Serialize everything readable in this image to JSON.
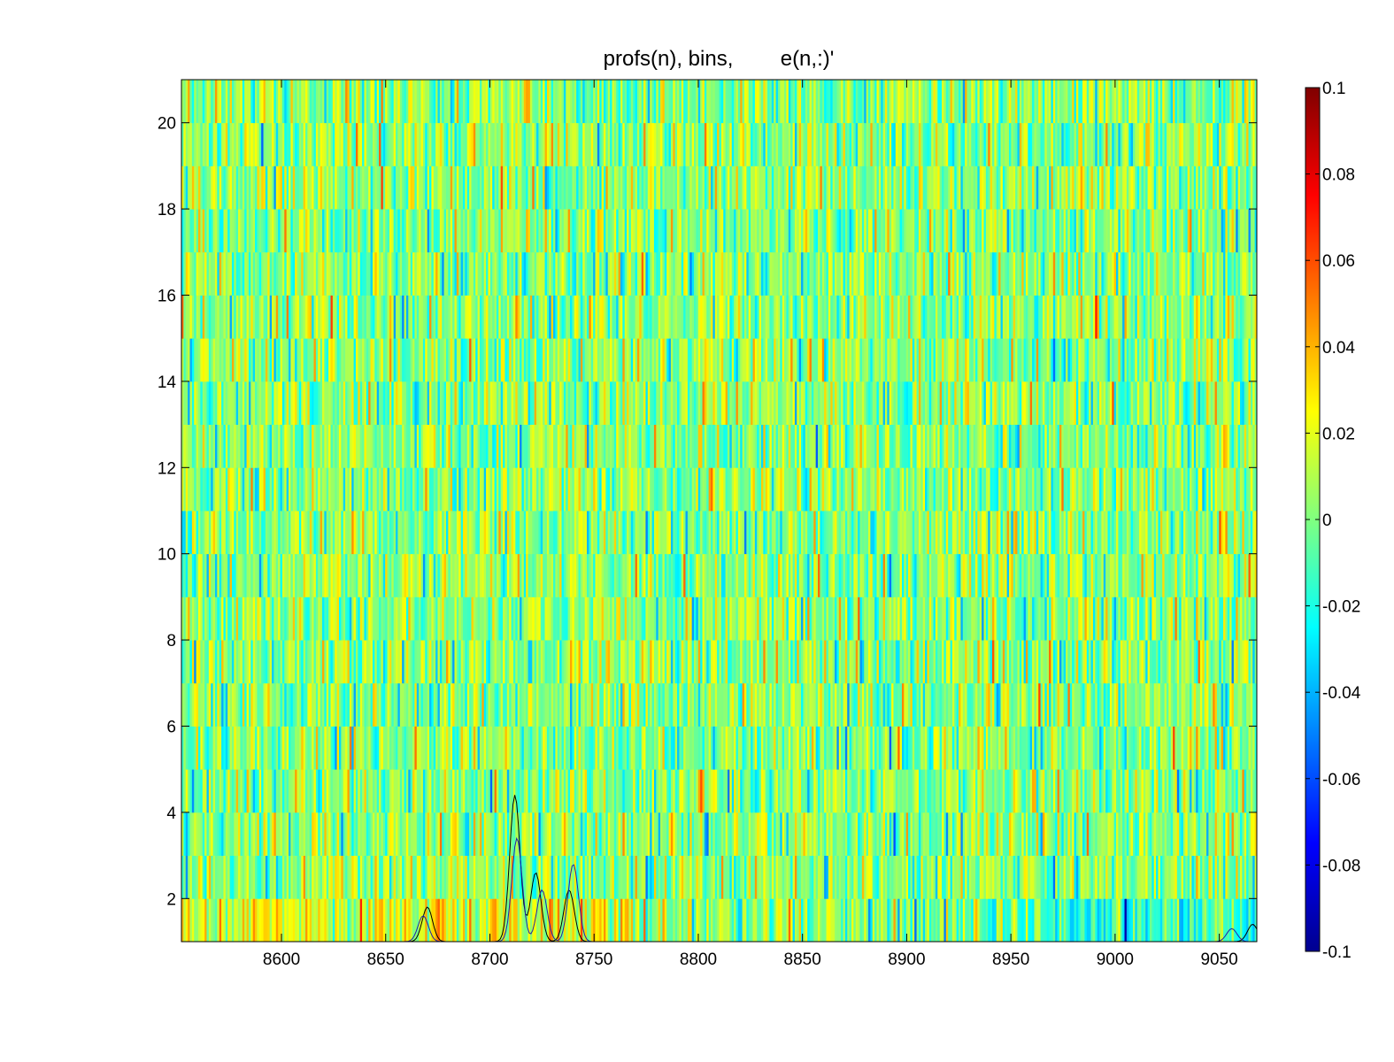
{
  "chart_data": {
    "type": "heatmap",
    "title": "profs(n), bins,        e(n,:)'",
    "xlabel": "",
    "ylabel": "",
    "xlim": [
      8552,
      9068
    ],
    "ylim": [
      1,
      21
    ],
    "x_ticks": [
      8600,
      8650,
      8700,
      8750,
      8800,
      8850,
      8900,
      8950,
      9000,
      9050
    ],
    "x_tick_labels": [
      "8600",
      "8650",
      "8700",
      "8750",
      "8800",
      "8850",
      "8900",
      "8950",
      "9000",
      "9050"
    ],
    "y_ticks": [
      2,
      4,
      6,
      8,
      10,
      12,
      14,
      16,
      18,
      20
    ],
    "y_tick_labels": [
      "2",
      "4",
      "6",
      "8",
      "10",
      "12",
      "14",
      "16",
      "18",
      "20"
    ],
    "rows": 20,
    "bins_per_row": 512,
    "colormap": "jet",
    "colorbar": {
      "range": [
        -0.1,
        0.1
      ],
      "ticks": [
        -0.1,
        -0.08,
        -0.06,
        -0.04,
        -0.02,
        0,
        0.02,
        0.04,
        0.06,
        0.08,
        0.1
      ],
      "tick_labels": [
        "-0.1",
        "-0.08",
        "-0.06",
        "-0.04",
        "-0.02",
        "0",
        "0.02",
        "0.04",
        "0.06",
        "0.08",
        "0.1"
      ]
    },
    "overlay_profiles": [
      {
        "color": "#000000",
        "peaks": [
          [
            8670,
            0.8
          ],
          [
            8712,
            3.4
          ],
          [
            8722,
            1.6
          ],
          [
            8738,
            1.2
          ],
          [
            9066,
            0.4
          ]
        ]
      },
      {
        "color": "#2222aa",
        "peaks": [
          [
            8668,
            0.6
          ],
          [
            8713,
            2.4
          ],
          [
            8725,
            1.2
          ],
          [
            8740,
            1.8
          ],
          [
            9056,
            0.3
          ]
        ]
      }
    ]
  }
}
